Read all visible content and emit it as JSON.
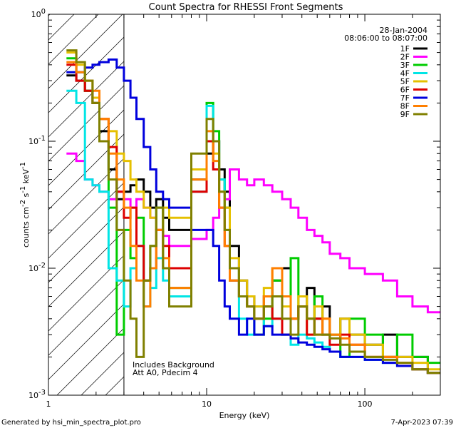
{
  "chart_data": {
    "type": "line",
    "title": "Count Spectra for RHESSI Front Segments",
    "xlabel": "Energy (keV)",
    "ylabel_main": "counts cm",
    "ylabel_sup1": "-2",
    "ylabel_mid1": " s",
    "ylabel_sup2": "-1",
    "ylabel_mid2": " keV",
    "ylabel_sup3": "-1",
    "xscale": "log",
    "yscale": "log",
    "xlim": [
      1,
      300
    ],
    "ylim": [
      0.001,
      1
    ],
    "x_ticks": [
      {
        "value": 1,
        "label": "1"
      },
      {
        "value": 10,
        "label": "10"
      },
      {
        "value": 100,
        "label": "100"
      }
    ],
    "y_ticks": [
      {
        "value": 0.001,
        "base": "10",
        "exp": "-3"
      },
      {
        "value": 0.01,
        "base": "10",
        "exp": "-2"
      },
      {
        "value": 0.1,
        "base": "10",
        "exp": "-1"
      },
      {
        "value": 1,
        "base": "10",
        "exp": "0"
      }
    ],
    "date": "28-Jan-2004",
    "time_range": "08:06:00 to 08:07:00",
    "annotations": [
      "Includes Background",
      "Att A0, Pdecim 4"
    ],
    "background_boundary_kev": 3,
    "legend_position": "top-right",
    "series": [
      {
        "name": "1F",
        "color": "#000000",
        "values": [
          0.33,
          0.3,
          0.25,
          0.2,
          0.12,
          0.06,
          0.035,
          0.04,
          0.045,
          0.05,
          0.04,
          0.03,
          0.035,
          0.025,
          0.02,
          0.05,
          0.08,
          0.1,
          0.06,
          0.04,
          0.015,
          0.008,
          0.006,
          0.004,
          0.006,
          0.008,
          0.01,
          0.004,
          0.005,
          0.007,
          0.004,
          0.005,
          0.003,
          0.004,
          0.003,
          0.0025,
          0.003,
          0.002,
          0.002,
          0.0015
        ]
      },
      {
        "name": "2F",
        "color": "#ff00ff",
        "values": [
          0.08,
          0.07,
          0.05,
          0.045,
          0.04,
          0.035,
          0.04,
          0.035,
          0.03,
          0.035,
          0.03,
          0.025,
          0.02,
          0.018,
          0.015,
          0.017,
          0.02,
          0.025,
          0.03,
          0.035,
          0.06,
          0.05,
          0.045,
          0.05,
          0.045,
          0.04,
          0.035,
          0.03,
          0.025,
          0.02,
          0.018,
          0.016,
          0.013,
          0.012,
          0.01,
          0.009,
          0.008,
          0.006,
          0.005,
          0.0045
        ]
      },
      {
        "name": "3F",
        "color": "#00cc00",
        "values": [
          0.45,
          0.35,
          0.25,
          0.2,
          0.1,
          0.03,
          0.003,
          0.02,
          0.012,
          0.025,
          0.008,
          0.015,
          0.03,
          0.01,
          0.007,
          0.06,
          0.2,
          0.12,
          0.05,
          0.03,
          0.01,
          0.006,
          0.005,
          0.003,
          0.004,
          0.008,
          0.006,
          0.012,
          0.005,
          0.004,
          0.006,
          0.003,
          0.003,
          0.002,
          0.004,
          0.003,
          0.002,
          0.003,
          0.002,
          0.0018
        ]
      },
      {
        "name": "4F",
        "color": "#00e5e5",
        "values": [
          0.25,
          0.2,
          0.05,
          0.045,
          0.04,
          0.01,
          0.008,
          0.005,
          0.01,
          0.015,
          0.005,
          0.007,
          0.012,
          0.008,
          0.006,
          0.04,
          0.19,
          0.1,
          0.05,
          0.02,
          0.008,
          0.004,
          0.003,
          0.005,
          0.0035,
          0.004,
          0.003,
          0.0025,
          0.003,
          0.0028,
          0.0026,
          0.0024,
          0.0022,
          0.002,
          0.002,
          0.0019,
          0.0018,
          0.0017,
          0.0016,
          0.0015
        ]
      },
      {
        "name": "5F",
        "color": "#e5c000",
        "values": [
          0.5,
          0.4,
          0.3,
          0.22,
          0.15,
          0.12,
          0.08,
          0.07,
          0.05,
          0.04,
          0.03,
          0.025,
          0.02,
          0.03,
          0.025,
          0.06,
          0.1,
          0.08,
          0.04,
          0.03,
          0.012,
          0.008,
          0.006,
          0.005,
          0.007,
          0.01,
          0.005,
          0.004,
          0.006,
          0.003,
          0.005,
          0.004,
          0.003,
          0.004,
          0.003,
          0.0025,
          0.002,
          0.002,
          0.0018,
          0.0016
        ]
      },
      {
        "name": "6F",
        "color": "#dd0000",
        "values": [
          0.4,
          0.3,
          0.25,
          0.2,
          0.15,
          0.09,
          0.04,
          0.025,
          0.03,
          0.015,
          0.008,
          0.01,
          0.02,
          0.015,
          0.01,
          0.04,
          0.1,
          0.06,
          0.03,
          0.015,
          0.008,
          0.006,
          0.005,
          0.004,
          0.005,
          0.004,
          0.003,
          0.004,
          0.005,
          0.003,
          0.004,
          0.003,
          0.0025,
          0.003,
          0.0025,
          0.002,
          0.002,
          0.0018,
          0.0016,
          0.0015
        ]
      },
      {
        "name": "7F",
        "color": "#0000dd",
        "values": [
          0.35,
          0.35,
          0.38,
          0.4,
          0.42,
          0.44,
          0.38,
          0.3,
          0.22,
          0.15,
          0.09,
          0.06,
          0.04,
          0.035,
          0.03,
          0.02,
          0.02,
          0.015,
          0.008,
          0.005,
          0.004,
          0.003,
          0.004,
          0.003,
          0.0035,
          0.003,
          0.003,
          0.0028,
          0.0026,
          0.0025,
          0.0024,
          0.0023,
          0.0022,
          0.002,
          0.002,
          0.0019,
          0.0018,
          0.0017,
          0.0016,
          0.0015
        ]
      },
      {
        "name": "8F",
        "color": "#ff7f00",
        "values": [
          0.42,
          0.35,
          0.3,
          0.25,
          0.15,
          0.08,
          0.05,
          0.03,
          0.015,
          0.008,
          0.005,
          0.01,
          0.02,
          0.012,
          0.007,
          0.05,
          0.12,
          0.07,
          0.03,
          0.015,
          0.008,
          0.006,
          0.005,
          0.004,
          0.006,
          0.01,
          0.006,
          0.004,
          0.005,
          0.004,
          0.003,
          0.004,
          0.003,
          0.0028,
          0.0025,
          0.002,
          0.002,
          0.0018,
          0.0016,
          0.0015
        ]
      },
      {
        "name": "9F",
        "color": "#808000",
        "values": [
          0.52,
          0.42,
          0.3,
          0.2,
          0.1,
          0.05,
          0.02,
          0.008,
          0.004,
          0.002,
          0.008,
          0.015,
          0.03,
          0.01,
          0.005,
          0.08,
          0.15,
          0.1,
          0.04,
          0.02,
          0.01,
          0.006,
          0.005,
          0.004,
          0.005,
          0.006,
          0.004,
          0.003,
          0.005,
          0.004,
          0.003,
          0.003,
          0.0028,
          0.0025,
          0.0022,
          0.002,
          0.0019,
          0.0018,
          0.0016,
          0.0015
        ]
      }
    ],
    "energy_bins": [
      1.3,
      1.5,
      1.7,
      1.9,
      2.1,
      2.4,
      2.7,
      3.0,
      3.3,
      3.6,
      4.0,
      4.4,
      4.8,
      5.3,
      5.8,
      8.0,
      10.0,
      11.0,
      12.0,
      13.0,
      14.0,
      16.0,
      18.0,
      20.0,
      23.0,
      26.0,
      30.0,
      34.0,
      38.0,
      43.0,
      48.0,
      54.0,
      60.0,
      70.0,
      80.0,
      100.0,
      130.0,
      160.0,
      200.0,
      250.0
    ]
  },
  "footer": {
    "generated": "Generated by hsi_min_spectra_plot.pro",
    "timestamp": "7-Apr-2023 07:39"
  }
}
